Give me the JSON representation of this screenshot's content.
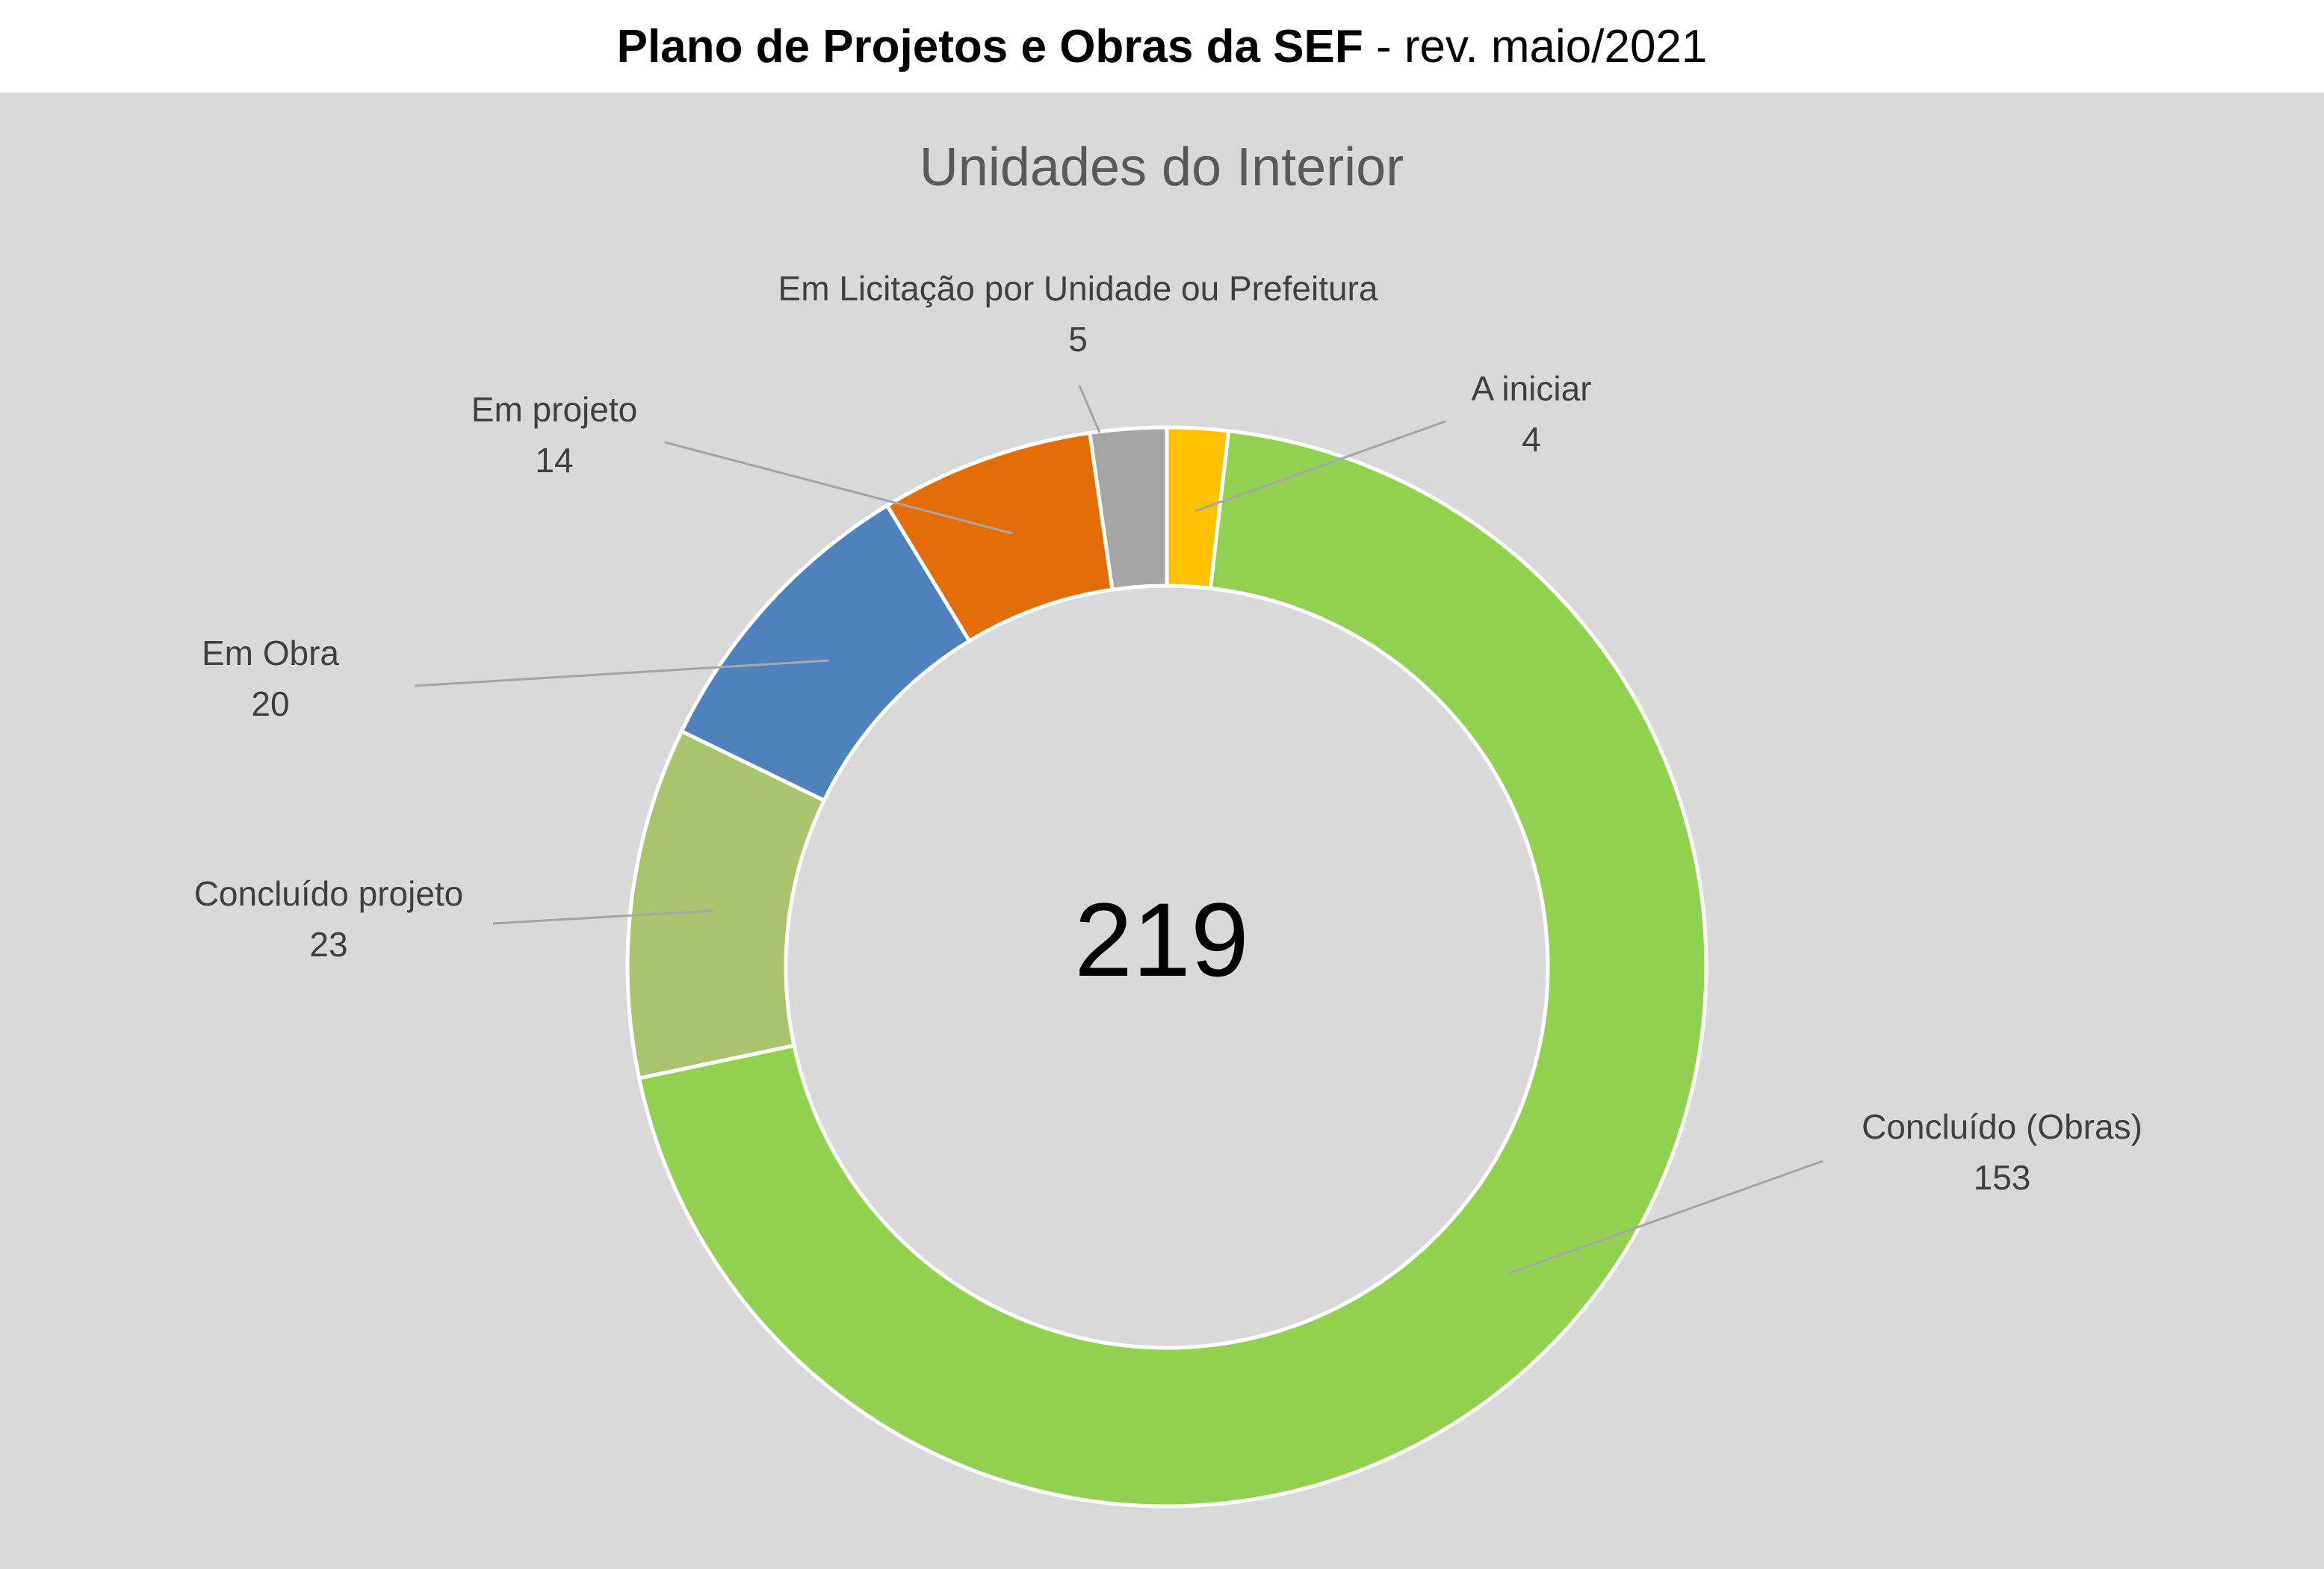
{
  "header": {
    "title_bold": "Plano de Projetos e Obras da SEF",
    "title_rest": " - rev. maio/2021"
  },
  "chart_data": {
    "type": "pie",
    "variant": "doughnut",
    "title": "Unidades do Interior",
    "center_label": "219",
    "slices": [
      {
        "label": "A iniciar",
        "value": 4,
        "color": "#ffc000"
      },
      {
        "label": "Concluído (Obras)",
        "value": 153,
        "color": "#92d050"
      },
      {
        "label": "Concluído projeto",
        "value": 23,
        "color": "#a9c46c"
      },
      {
        "label": "Em Obra",
        "value": 20,
        "color": "#4f81bd"
      },
      {
        "label": "Em projeto",
        "value": 14,
        "color": "#e36c09"
      },
      {
        "label": "Em Licitação por Unidade ou Prefeitura",
        "value": 5,
        "color": "#a5a5a5"
      }
    ],
    "start_angle_deg": 0,
    "direction": "clockwise",
    "background": "#d9d9d9"
  }
}
